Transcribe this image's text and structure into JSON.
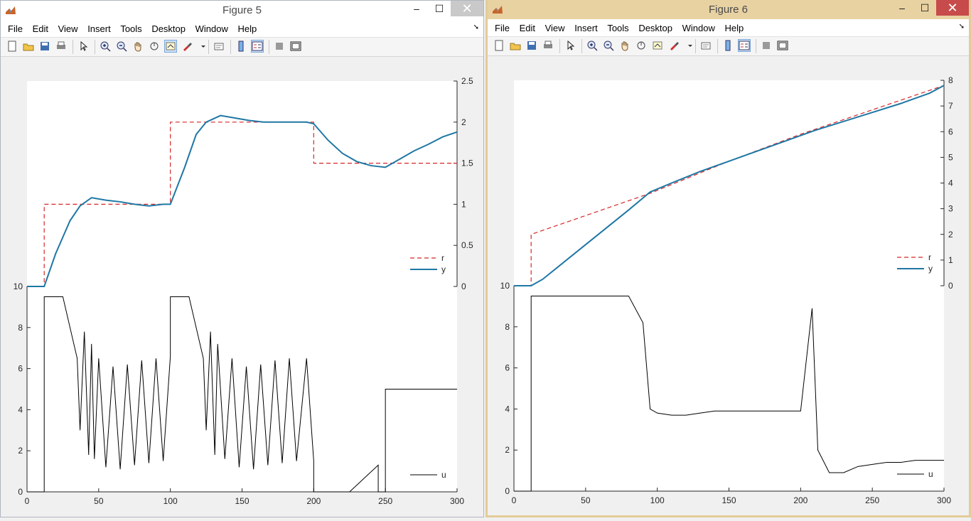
{
  "windows": [
    {
      "id": "w5",
      "title": "Figure 5",
      "menu": [
        "File",
        "Edit",
        "View",
        "Insert",
        "Tools",
        "Desktop",
        "Window",
        "Help"
      ],
      "controls": {
        "minimize": "–",
        "maximize": "☐",
        "close": "✕"
      },
      "top_axes": {
        "y_right_ticks": [
          "2.5",
          "2",
          "1.5",
          "1",
          "0.5",
          "0"
        ],
        "legend": [
          "r",
          "y"
        ]
      },
      "bottom_axes": {
        "y_ticks": [
          "10",
          "8",
          "6",
          "4",
          "2",
          "0"
        ],
        "x_ticks": [
          "0",
          "50",
          "100",
          "150",
          "200",
          "250",
          "300"
        ],
        "legend": [
          "u"
        ]
      }
    },
    {
      "id": "w6",
      "title": "Figure 6",
      "menu": [
        "File",
        "Edit",
        "View",
        "Insert",
        "Tools",
        "Desktop",
        "Window",
        "Help"
      ],
      "controls": {
        "minimize": "–",
        "maximize": "☐",
        "close": "✕"
      },
      "top_axes": {
        "y_right_ticks": [
          "8",
          "7",
          "6",
          "5",
          "4",
          "3",
          "2",
          "1",
          "0"
        ],
        "legend": [
          "r",
          "y"
        ]
      },
      "bottom_axes": {
        "y_ticks": [
          "10",
          "8",
          "6",
          "4",
          "2",
          "0"
        ],
        "x_ticks": [
          "0",
          "50",
          "100",
          "150",
          "200",
          "250",
          "300"
        ],
        "legend": [
          "u"
        ]
      }
    }
  ],
  "colors": {
    "reference": "#d62728",
    "output": "#1f77a4",
    "control": "#000000",
    "output_thin": "#3a8fc0"
  },
  "chart_data": [
    {
      "figure": "Figure 5 (top)",
      "type": "line",
      "xlim": [
        0,
        300
      ],
      "ylim": [
        0,
        2.5
      ],
      "series": [
        {
          "name": "r",
          "style": "dashed",
          "x": [
            0,
            12,
            12,
            100,
            100,
            200,
            200,
            300
          ],
          "y": [
            0,
            0,
            1,
            1,
            2,
            2,
            1.5,
            1.5
          ]
        },
        {
          "name": "y",
          "x": [
            0,
            12,
            20,
            30,
            37,
            45,
            55,
            65,
            75,
            85,
            95,
            100,
            110,
            118,
            125,
            135,
            145,
            155,
            165,
            175,
            185,
            195,
            200,
            210,
            220,
            230,
            240,
            250,
            260,
            270,
            280,
            290,
            300
          ],
          "y": [
            0,
            0,
            0.4,
            0.8,
            0.98,
            1.08,
            1.05,
            1.03,
            1.0,
            0.98,
            1.0,
            1.0,
            1.45,
            1.85,
            2.0,
            2.08,
            2.05,
            2.02,
            2.0,
            2.0,
            2.0,
            2.0,
            1.98,
            1.78,
            1.62,
            1.52,
            1.47,
            1.45,
            1.55,
            1.65,
            1.73,
            1.82,
            1.88
          ]
        }
      ]
    },
    {
      "figure": "Figure 5 (bottom)",
      "type": "line",
      "xlim": [
        0,
        300
      ],
      "ylim": [
        0,
        10
      ],
      "series": [
        {
          "name": "u",
          "x": [
            0,
            12,
            12,
            25,
            35,
            37,
            40,
            43,
            45,
            47,
            50,
            55,
            60,
            65,
            70,
            75,
            80,
            85,
            90,
            95,
            100,
            100,
            113,
            123,
            125,
            128,
            131,
            133,
            138,
            143,
            148,
            153,
            158,
            163,
            168,
            173,
            178,
            183,
            188,
            195,
            200,
            200,
            225,
            245,
            245,
            250,
            250,
            300
          ],
          "y": [
            0,
            0,
            9.5,
            9.5,
            6.5,
            3.0,
            7.8,
            1.8,
            7.2,
            1.6,
            6.5,
            1.2,
            6.1,
            1.1,
            6.2,
            1.3,
            6.4,
            1.4,
            6.5,
            1.5,
            6.6,
            9.5,
            9.5,
            6.5,
            3.0,
            7.8,
            1.8,
            7.2,
            1.6,
            6.5,
            1.2,
            6.1,
            1.1,
            6.2,
            1.3,
            6.4,
            1.4,
            6.5,
            1.5,
            6.5,
            1.5,
            0,
            0,
            1.3,
            0,
            0,
            5.0,
            5.0
          ]
        }
      ]
    },
    {
      "figure": "Figure 6 (top)",
      "type": "line",
      "xlim": [
        0,
        300
      ],
      "ylim": [
        0,
        8
      ],
      "series": [
        {
          "name": "r",
          "style": "dashed",
          "x": [
            0,
            12,
            12,
            95,
            150,
            200,
            250,
            300
          ],
          "y": [
            0,
            0,
            2,
            3.6,
            4.85,
            5.9,
            6.85,
            7.8
          ]
        },
        {
          "name": "y",
          "x": [
            0,
            12,
            20,
            40,
            60,
            80,
            95,
            110,
            130,
            150,
            170,
            190,
            210,
            230,
            250,
            270,
            290,
            300
          ],
          "y": [
            0,
            0,
            0.25,
            1.15,
            2.05,
            2.95,
            3.65,
            4.0,
            4.45,
            4.85,
            5.25,
            5.65,
            6.05,
            6.4,
            6.75,
            7.1,
            7.5,
            7.8
          ]
        }
      ]
    },
    {
      "figure": "Figure 6 (bottom)",
      "type": "line",
      "xlim": [
        0,
        300
      ],
      "ylim": [
        0,
        10
      ],
      "series": [
        {
          "name": "u",
          "x": [
            0,
            12,
            12,
            80,
            90,
            95,
            100,
            110,
            120,
            130,
            140,
            150,
            160,
            170,
            180,
            190,
            200,
            208,
            212,
            220,
            230,
            240,
            250,
            260,
            270,
            280,
            290,
            300
          ],
          "y": [
            0,
            0,
            9.5,
            9.5,
            8.2,
            4.0,
            3.8,
            3.7,
            3.7,
            3.8,
            3.9,
            3.9,
            3.9,
            3.9,
            3.9,
            3.9,
            3.9,
            8.9,
            2.0,
            0.9,
            0.9,
            1.2,
            1.3,
            1.4,
            1.4,
            1.5,
            1.5,
            1.5
          ]
        }
      ]
    }
  ]
}
